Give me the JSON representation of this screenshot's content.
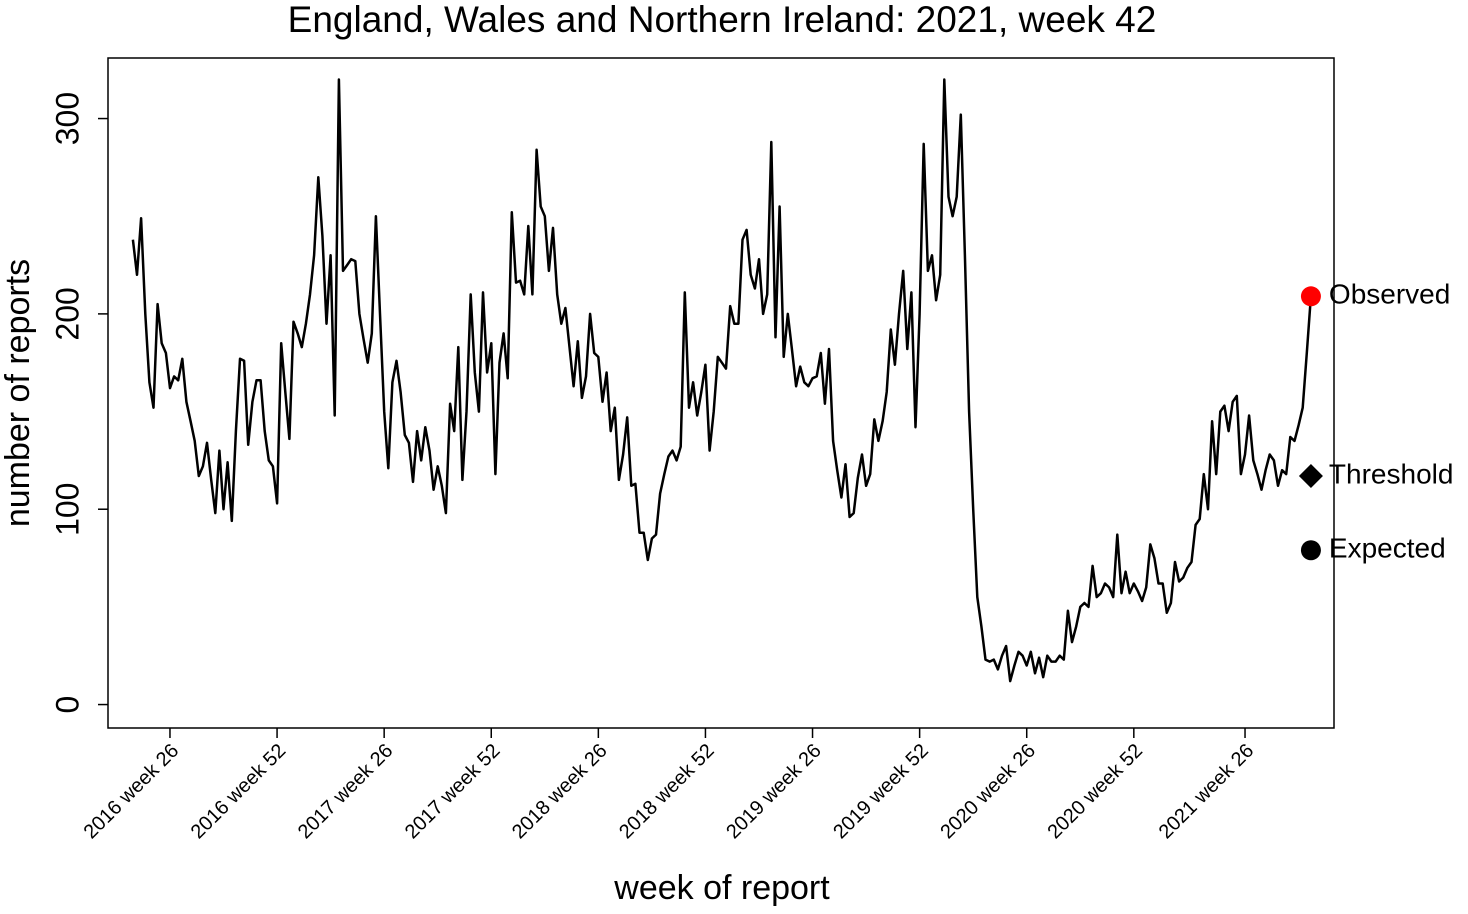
{
  "chart_data": {
    "type": "line",
    "title": "England, Wales and Northern Ireland: 2021, week 42",
    "x_label": "week of report",
    "y_label": "number of reports",
    "categories": [
      null,
      null,
      null,
      null,
      null,
      null,
      null,
      null,
      null,
      "2016 week 26",
      null,
      null,
      null,
      null,
      null,
      null,
      null,
      null,
      null,
      null,
      null,
      null,
      null,
      null,
      null,
      null,
      null,
      null,
      null,
      null,
      null,
      null,
      null,
      null,
      null,
      "2016 week 52",
      null,
      null,
      null,
      null,
      null,
      null,
      null,
      null,
      null,
      null,
      null,
      null,
      null,
      null,
      null,
      null,
      null,
      null,
      null,
      null,
      null,
      null,
      null,
      null,
      null,
      "2017 week 26",
      null,
      null,
      null,
      null,
      null,
      null,
      null,
      null,
      null,
      null,
      null,
      null,
      null,
      null,
      null,
      null,
      null,
      null,
      null,
      null,
      null,
      null,
      null,
      null,
      null,
      "2017 week 52",
      null,
      null,
      null,
      null,
      null,
      null,
      null,
      null,
      null,
      null,
      null,
      null,
      null,
      null,
      null,
      null,
      null,
      null,
      null,
      null,
      null,
      null,
      null,
      null,
      null,
      "2018 week 26",
      null,
      null,
      null,
      null,
      null,
      null,
      null,
      null,
      null,
      null,
      null,
      null,
      null,
      null,
      null,
      null,
      null,
      null,
      null,
      null,
      null,
      null,
      null,
      null,
      null,
      "2018 week 52",
      null,
      null,
      null,
      null,
      null,
      null,
      null,
      null,
      null,
      null,
      null,
      null,
      null,
      null,
      null,
      null,
      null,
      null,
      null,
      null,
      null,
      null,
      null,
      null,
      null,
      "2019 week 26",
      null,
      null,
      null,
      null,
      null,
      null,
      null,
      null,
      null,
      null,
      null,
      null,
      null,
      null,
      null,
      null,
      null,
      null,
      null,
      null,
      null,
      null,
      null,
      null,
      null,
      "2019 week 52",
      null,
      null,
      null,
      null,
      null,
      null,
      null,
      null,
      null,
      null,
      null,
      null,
      null,
      null,
      null,
      null,
      null,
      null,
      null,
      null,
      null,
      null,
      null,
      null,
      null,
      "2020 week 26",
      null,
      null,
      null,
      null,
      null,
      null,
      null,
      null,
      null,
      null,
      null,
      null,
      null,
      null,
      null,
      null,
      null,
      null,
      null,
      null,
      null,
      null,
      null,
      null,
      null,
      "2020 week 52",
      null,
      null,
      null,
      null,
      null,
      null,
      null,
      null,
      null,
      null,
      null,
      null,
      null,
      null,
      null,
      null,
      null,
      null,
      null,
      null,
      null,
      null,
      null,
      null,
      null,
      null,
      "2021 week 26",
      null,
      null,
      null,
      null,
      null,
      null,
      null,
      null,
      null,
      null,
      null,
      null,
      null,
      null,
      null,
      null
    ],
    "values": [
      238,
      220,
      249,
      200,
      165,
      152,
      205,
      185,
      180,
      162,
      168,
      166,
      177,
      155,
      145,
      135,
      117,
      122,
      134,
      115,
      98,
      130,
      100,
      124,
      94,
      140,
      177,
      176,
      133,
      155,
      166,
      166,
      140,
      125,
      122,
      103,
      185,
      160,
      136,
      196,
      190,
      183,
      195,
      210,
      230,
      270,
      240,
      195,
      230,
      148,
      320,
      222,
      225,
      228,
      227,
      200,
      187,
      175,
      190,
      250,
      200,
      150,
      121,
      165,
      176,
      160,
      138,
      134,
      114,
      140,
      125,
      142,
      130,
      110,
      122,
      112,
      98,
      154,
      140,
      183,
      115,
      150,
      210,
      170,
      150,
      211,
      170,
      185,
      118,
      175,
      190,
      167,
      252,
      216,
      217,
      210,
      245,
      210,
      284,
      255,
      250,
      222,
      244,
      210,
      195,
      203,
      183,
      163,
      186,
      157,
      168,
      200,
      180,
      178,
      155,
      170,
      140,
      152,
      115,
      128,
      147,
      112,
      113,
      88,
      88,
      74,
      85,
      87,
      108,
      118,
      127,
      130,
      125,
      132,
      211,
      152,
      165,
      148,
      160,
      174,
      130,
      150,
      178,
      175,
      172,
      204,
      195,
      195,
      238,
      243,
      220,
      213,
      228,
      200,
      210,
      288,
      188,
      255,
      178,
      200,
      182,
      163,
      173,
      165,
      163,
      167,
      168,
      180,
      154,
      182,
      135,
      120,
      106,
      123,
      96,
      98,
      116,
      128,
      112,
      118,
      146,
      135,
      145,
      160,
      192,
      174,
      200,
      222,
      182,
      211,
      142,
      200,
      287,
      222,
      230,
      207,
      220,
      320,
      260,
      250,
      260,
      302,
      230,
      150,
      100,
      55,
      40,
      23,
      22,
      23,
      18,
      25,
      30,
      12,
      20,
      27,
      25,
      20,
      27,
      16,
      24,
      14,
      25,
      22,
      22,
      25,
      23,
      48,
      32,
      40,
      50,
      52,
      50,
      71,
      55,
      57,
      62,
      60,
      55,
      87,
      57,
      68,
      57,
      62,
      58,
      53,
      60,
      82,
      75,
      62,
      62,
      47,
      52,
      73,
      63,
      65,
      70,
      73,
      92,
      95,
      118,
      100,
      145,
      118,
      150,
      153,
      140,
      155,
      158,
      118,
      128,
      148,
      125,
      118,
      110,
      120,
      128,
      125,
      112,
      120,
      118,
      137,
      135,
      143,
      152,
      180,
      209
    ],
    "color": "#000000",
    "ylim": [
      -12,
      331
    ],
    "yticks": [
      0,
      100,
      200,
      300
    ],
    "points": [
      {
        "name": "Observed",
        "value": 209,
        "color": "#ff0000",
        "shape": "circle"
      },
      {
        "name": "Threshold",
        "value": 117,
        "color": "#000000",
        "shape": "diamond"
      },
      {
        "name": "Expected",
        "value": 79,
        "color": "#000000",
        "shape": "circle"
      }
    ]
  }
}
